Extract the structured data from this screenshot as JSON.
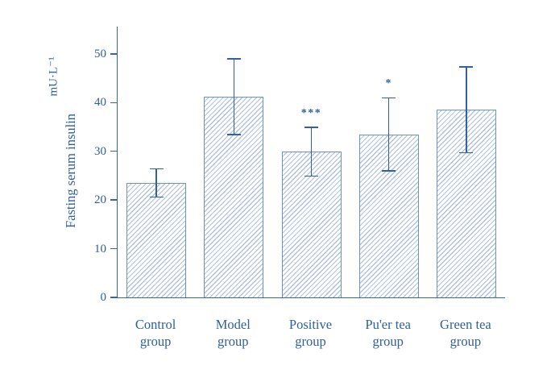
{
  "chart_data": {
    "type": "bar",
    "title": "",
    "categories": [
      "Control group",
      "Model group",
      "Positive group",
      "Pu'er tea group",
      "Green tea group"
    ],
    "category_lines": [
      [
        "Control",
        "group"
      ],
      [
        "Model",
        "group"
      ],
      [
        "Positive",
        "group"
      ],
      [
        "Pu'er tea",
        "group"
      ],
      [
        "Green tea",
        "group"
      ]
    ],
    "values": [
      23.5,
      41.2,
      29.9,
      33.5,
      38.5
    ],
    "errors": [
      2.9,
      7.8,
      5.0,
      7.5,
      8.8
    ],
    "significance": [
      "",
      "",
      "***",
      "*",
      ""
    ],
    "ylabel": "Fasting serum insulin",
    "ylabel_unit": "mU·L⁻¹",
    "xlabel": "",
    "yticks": [
      0,
      10,
      20,
      30,
      40,
      50
    ],
    "ylim": [
      0,
      55.6
    ],
    "grid": false,
    "legend": "none",
    "bar_style": "diagonal-hatch",
    "colors": {
      "axis": "#3566a5",
      "text": "#2e5f9e",
      "bar_border": "#6e93c0",
      "hatch": "#b0c2db",
      "error": "#33619f",
      "significance": "#2e5f9e"
    }
  }
}
